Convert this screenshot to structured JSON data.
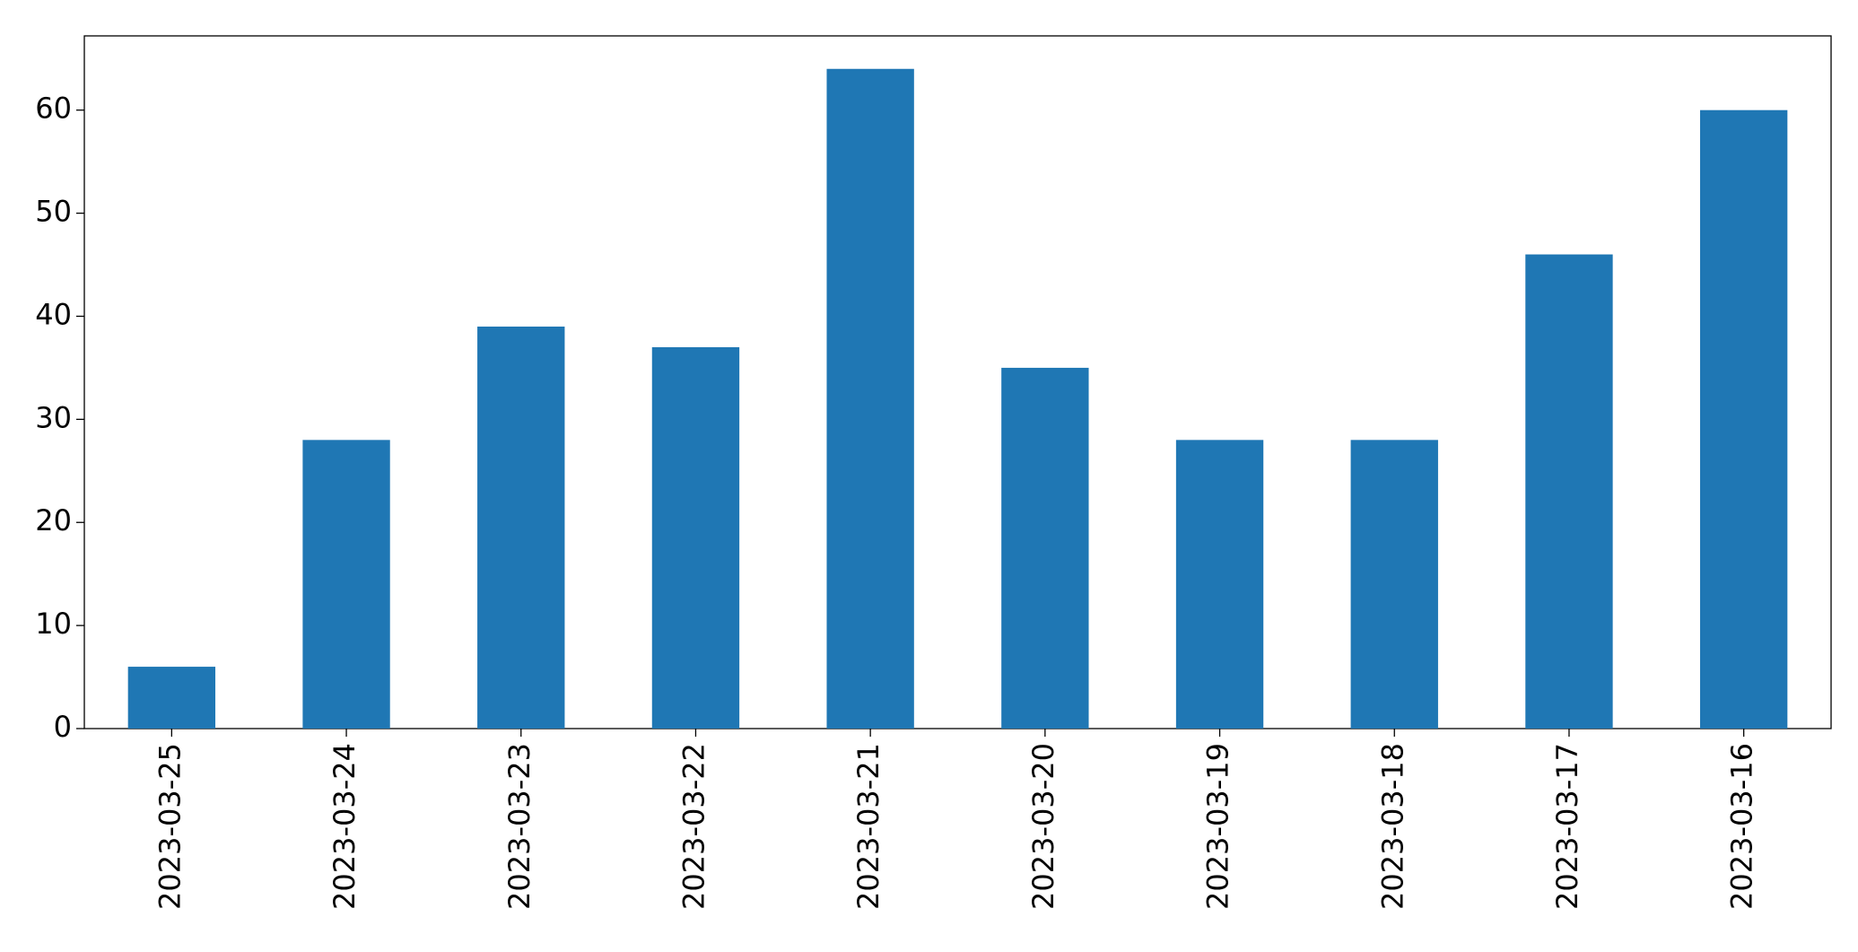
{
  "chart_data": {
    "type": "bar",
    "categories": [
      "2023-03-25",
      "2023-03-24",
      "2023-03-23",
      "2023-03-22",
      "2023-03-21",
      "2023-03-20",
      "2023-03-19",
      "2023-03-18",
      "2023-03-17",
      "2023-03-16"
    ],
    "values": [
      6,
      28,
      39,
      37,
      64,
      35,
      28,
      28,
      46,
      60
    ],
    "color": "#1f77b4",
    "ylim": [
      0,
      67.2
    ],
    "yticks": [
      0,
      10,
      20,
      30,
      40,
      50,
      60
    ],
    "grid": false
  }
}
